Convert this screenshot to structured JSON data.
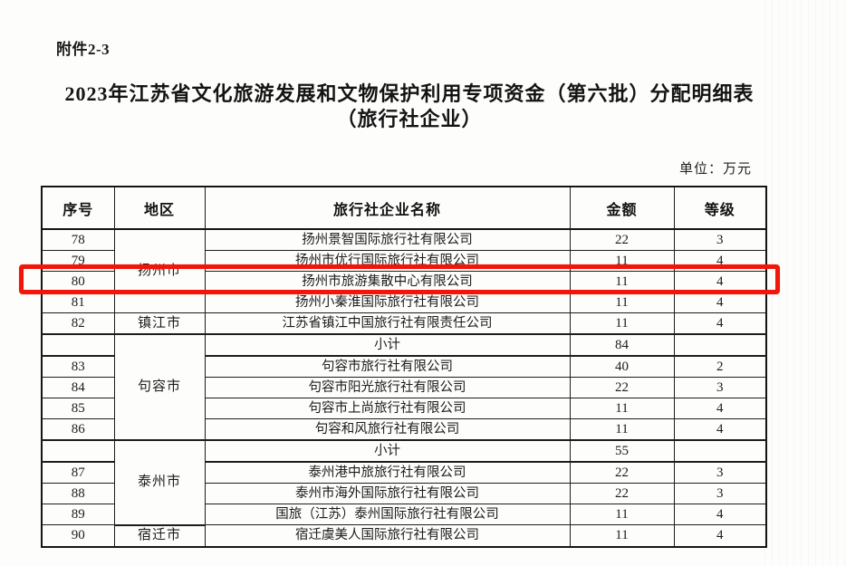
{
  "page": {
    "attachment_label": "附件2-3",
    "title_line1": "2023年江苏省文化旅游发展和文物保护利用专项资金（第六批）分配明细表",
    "title_line2": "（旅行社企业）",
    "unit_note": "单位：万元"
  },
  "colors": {
    "highlight_red": "#f2150a"
  },
  "table": {
    "columns": [
      "序号",
      "地区",
      "旅行社企业名称",
      "金额",
      "等级"
    ],
    "rows": [
      {
        "no": "78",
        "region": "扬州市",
        "region_span": 4,
        "name": "扬州景智国际旅行社有限公司",
        "amount": "22",
        "grade": "3"
      },
      {
        "no": "79",
        "name": "扬州市优行国际旅行社有限公司",
        "amount": "11",
        "grade": "4"
      },
      {
        "no": "80",
        "name": "扬州市旅游集散中心有限公司",
        "amount": "11",
        "grade": "4",
        "highlight": true
      },
      {
        "no": "81",
        "name": "扬州小秦淮国际旅行社有限公司",
        "amount": "11",
        "grade": "4"
      },
      {
        "no": "82",
        "region": "镇江市",
        "region_span": 1,
        "name": "江苏省镇江中国旅行社有限责任公司",
        "amount": "11",
        "grade": "4"
      },
      {
        "no": "",
        "region": "句容市",
        "region_span": 5,
        "name": "小计",
        "amount": "84",
        "grade": "",
        "subtotal": true
      },
      {
        "no": "83",
        "name": "句容市旅行社有限公司",
        "amount": "40",
        "grade": "2"
      },
      {
        "no": "84",
        "name": "句容市阳光旅行社有限公司",
        "amount": "22",
        "grade": "3"
      },
      {
        "no": "85",
        "name": "句容市上尚旅行社有限公司",
        "amount": "11",
        "grade": "4"
      },
      {
        "no": "86",
        "name": "句容和风旅行社有限公司",
        "amount": "11",
        "grade": "4"
      },
      {
        "no": "",
        "region": "泰州市",
        "region_span": 4,
        "name": "小计",
        "amount": "55",
        "grade": "",
        "subtotal": true
      },
      {
        "no": "87",
        "name": "泰州港中旅旅行社有限公司",
        "amount": "22",
        "grade": "3"
      },
      {
        "no": "88",
        "name": "泰州市海外国际旅行社有限公司",
        "amount": "22",
        "grade": "3"
      },
      {
        "no": "89",
        "name": "国旅（江苏）泰州国际旅行社有限公司",
        "amount": "11",
        "grade": "4"
      },
      {
        "no": "90",
        "region": "宿迁市",
        "region_span": 1,
        "name": "宿迁虞美人国际旅行社有限公司",
        "amount": "11",
        "grade": "4"
      }
    ]
  }
}
